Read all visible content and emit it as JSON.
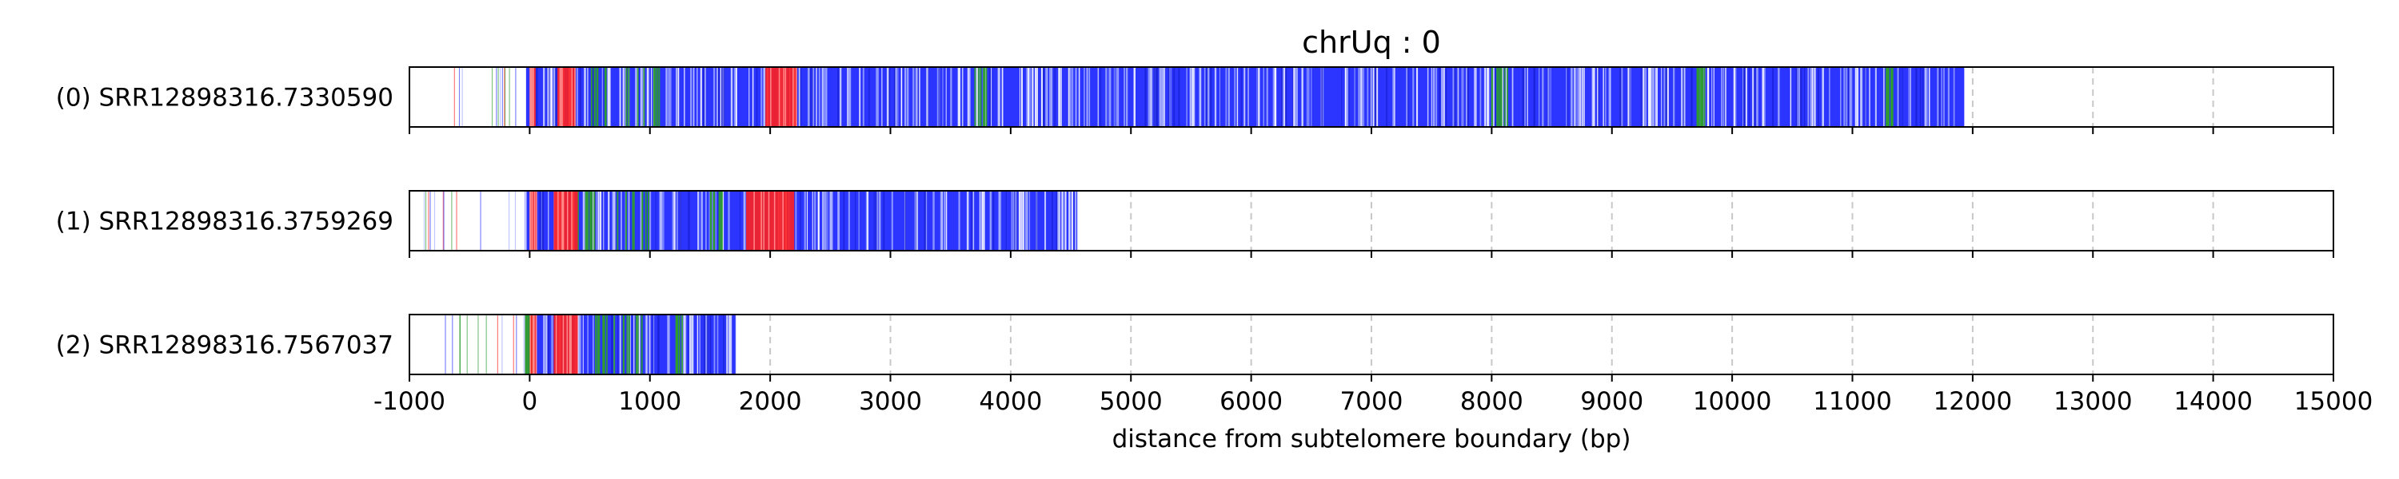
{
  "chart_data": {
    "type": "heatmap",
    "title": "chrUq : 0",
    "xlabel": "distance from subtelomere boundary (bp)",
    "xlim": [
      -1000,
      15000
    ],
    "xticks": [
      -1000,
      0,
      1000,
      2000,
      3000,
      4000,
      5000,
      6000,
      7000,
      8000,
      9000,
      10000,
      11000,
      12000,
      13000,
      14000,
      15000
    ],
    "grid": "vertical dashed",
    "colors": {
      "main": "#2b35ff",
      "red": "#ff2020",
      "green": "#2e9d2e",
      "light": "#9aa4ff",
      "pale": "#d6dbff"
    },
    "reads": [
      {
        "label": "(0) SRR12898316.7330590",
        "start": -1000,
        "end": 11930,
        "sparse_start": -700,
        "dense_start": -30,
        "red_regions": [
          [
            0,
            50
          ],
          [
            230,
            380
          ],
          [
            1960,
            2220
          ]
        ],
        "green_regions": [
          [
            500,
            650
          ],
          [
            800,
            1100
          ],
          [
            3700,
            3800
          ],
          [
            8000,
            8150
          ],
          [
            9700,
            9800
          ],
          [
            11250,
            11350
          ]
        ]
      },
      {
        "label": "(1) SRR12898316.3759269",
        "start": -1000,
        "end": 4560,
        "sparse_start": -900,
        "dense_start": -40,
        "red_regions": [
          [
            0,
            60
          ],
          [
            200,
            400
          ],
          [
            1800,
            2200
          ]
        ],
        "green_regions": [
          [
            400,
            550
          ],
          [
            700,
            1050
          ],
          [
            1500,
            1600
          ]
        ]
      },
      {
        "label": "(2) SRR12898316.7567037",
        "start": -1000,
        "end": 1720,
        "sparse_start": -780,
        "dense_start": -50,
        "red_regions": [
          [
            0,
            60
          ],
          [
            200,
            400
          ]
        ],
        "green_regions": [
          [
            -60,
            20
          ],
          [
            500,
            650
          ],
          [
            700,
            950
          ],
          [
            1200,
            1300
          ]
        ]
      }
    ]
  }
}
